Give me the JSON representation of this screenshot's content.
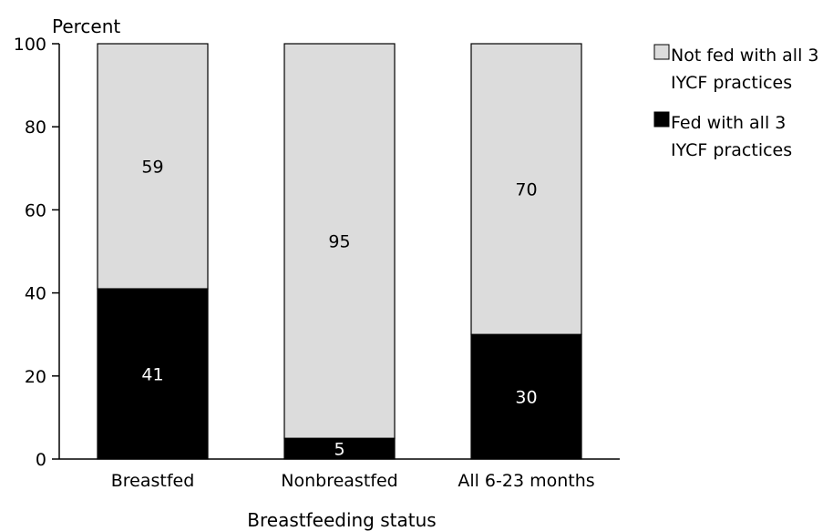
{
  "chart_data": {
    "type": "bar",
    "stacked": true,
    "categories": [
      "Breastfed",
      "Nonbreastfed",
      "All 6-23 months"
    ],
    "series": [
      {
        "name": "Fed with all 3 IYCF practices",
        "values": [
          41,
          5,
          30
        ],
        "color": "#000000",
        "label_color": "#ffffff"
      },
      {
        "name": "Not fed with all 3 IYCF practices",
        "values": [
          59,
          95,
          70
        ],
        "color": "#dcdcdc",
        "label_color": "#000000"
      }
    ],
    "ylabel": "Percent",
    "xlabel": "Breastfeeding status",
    "ylim": [
      0,
      100
    ],
    "yticks": [
      0,
      20,
      40,
      60,
      80,
      100
    ],
    "grid": false,
    "legend": {
      "position": "top-right",
      "entries": [
        {
          "lines": [
            "Not fed with all 3",
            "IYCF practices"
          ],
          "color": "#dcdcdc"
        },
        {
          "lines": [
            "Fed with all 3",
            "IYCF practices"
          ],
          "color": "#000000"
        }
      ]
    }
  }
}
